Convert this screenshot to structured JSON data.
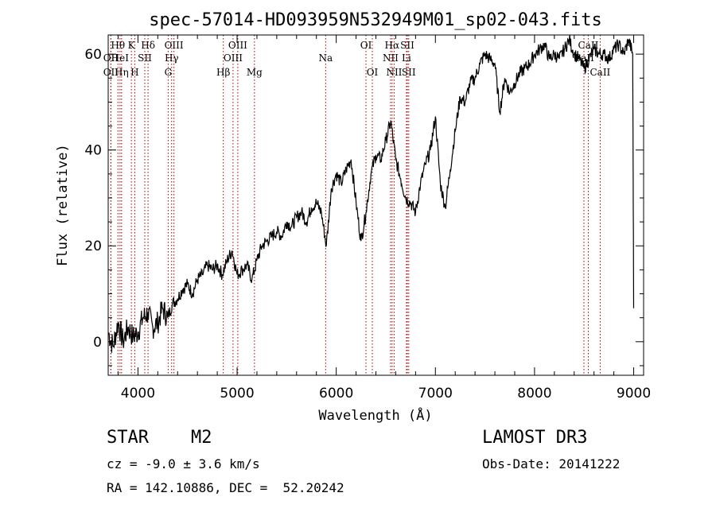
{
  "chart_data": {
    "type": "line",
    "title": "spec-57014-HD093959N532949M01_sp02-043.fits",
    "xlabel": "Wavelength (Å)",
    "ylabel": "Flux (relative)",
    "xlim": [
      3700,
      9100
    ],
    "ylim": [
      -7,
      64
    ],
    "xticks": [
      4000,
      5000,
      6000,
      7000,
      8000,
      9000
    ],
    "yticks": [
      0,
      20,
      40,
      60
    ],
    "series": [
      {
        "name": "flux",
        "x": [
          3700,
          3750,
          3800,
          3850,
          3900,
          3950,
          4000,
          4050,
          4100,
          4150,
          4200,
          4250,
          4300,
          4350,
          4400,
          4450,
          4500,
          4550,
          4600,
          4650,
          4700,
          4750,
          4800,
          4850,
          4900,
          4950,
          5000,
          5050,
          5100,
          5150,
          5200,
          5250,
          5300,
          5350,
          5400,
          5450,
          5500,
          5550,
          5600,
          5650,
          5700,
          5750,
          5800,
          5850,
          5900,
          5950,
          6000,
          6050,
          6100,
          6150,
          6200,
          6250,
          6300,
          6350,
          6400,
          6450,
          6500,
          6550,
          6600,
          6650,
          6700,
          6750,
          6800,
          6850,
          6900,
          6950,
          7000,
          7050,
          7100,
          7150,
          7200,
          7250,
          7300,
          7350,
          7400,
          7450,
          7500,
          7550,
          7600,
          7650,
          7700,
          7750,
          7800,
          7850,
          7900,
          7950,
          8000,
          8050,
          8100,
          8150,
          8200,
          8250,
          8300,
          8350,
          8400,
          8450,
          8500,
          8550,
          8600,
          8650,
          8700,
          8750,
          8800,
          8850,
          8900,
          8950,
          8990,
          9000
        ],
        "y": [
          2,
          -1,
          4,
          0,
          3,
          1,
          2,
          5,
          6,
          3,
          4,
          7,
          5,
          8,
          9,
          11,
          12,
          10,
          13,
          14,
          16,
          15,
          16,
          14,
          17,
          19,
          14,
          15,
          16,
          13,
          17,
          20,
          21,
          22,
          23,
          22,
          25,
          24,
          26,
          27,
          25,
          28,
          29,
          27,
          20,
          32,
          35,
          33,
          36,
          38,
          29,
          21,
          27,
          35,
          39,
          38,
          42,
          46,
          38,
          34,
          30,
          29,
          27,
          33,
          37,
          40,
          47,
          33,
          28,
          36,
          44,
          51,
          50,
          54,
          55,
          58,
          60,
          59,
          58,
          48,
          55,
          52,
          54,
          56,
          57,
          58,
          60,
          61,
          62,
          59,
          60,
          59,
          61,
          63,
          60,
          59,
          57,
          59,
          61,
          60,
          60,
          59,
          61,
          62,
          60,
          63,
          60,
          7
        ]
      }
    ],
    "lines": [
      {
        "label": "Hθ",
        "x": 3798,
        "row": 1
      },
      {
        "label": "OII",
        "x": 3727,
        "row": 2
      },
      {
        "label": "OII",
        "x": 3727,
        "row": 3
      },
      {
        "label": "HeI",
        "x": 3819,
        "row": 2
      },
      {
        "label": "Hη",
        "x": 3835,
        "row": 3
      },
      {
        "label": "K",
        "x": 3934,
        "row": 1
      },
      {
        "label": "SII",
        "x": 4069,
        "row": 2
      },
      {
        "label": "H",
        "x": 3968,
        "row": 3
      },
      {
        "label": "Hδ",
        "x": 4102,
        "row": 1
      },
      {
        "label": "OIII",
        "x": 4363,
        "row": 1
      },
      {
        "label": "Hγ",
        "x": 4340,
        "row": 2
      },
      {
        "label": "G",
        "x": 4305,
        "row": 3
      },
      {
        "label": "Hβ",
        "x": 4861,
        "row": 3
      },
      {
        "label": "OIII",
        "x": 5007,
        "row": 1
      },
      {
        "label": "OIII",
        "x": 4959,
        "row": 2
      },
      {
        "label": "Mg",
        "x": 5175,
        "row": 3
      },
      {
        "label": "Na",
        "x": 5893,
        "row": 2
      },
      {
        "label": "OI",
        "x": 6300,
        "row": 1
      },
      {
        "label": "OI",
        "x": 6364,
        "row": 3
      },
      {
        "label": "Hα",
        "x": 6563,
        "row": 1
      },
      {
        "label": "SII",
        "x": 6717,
        "row": 1
      },
      {
        "label": "NII",
        "x": 6548,
        "row": 2
      },
      {
        "label": "Li",
        "x": 6708,
        "row": 2
      },
      {
        "label": "NII",
        "x": 6584,
        "row": 3
      },
      {
        "label": "SII",
        "x": 6731,
        "row": 3
      },
      {
        "label": "CaII",
        "x": 8542,
        "row": 1
      },
      {
        "label": "CaII",
        "x": 8498,
        "row": 2
      },
      {
        "label": "CaII",
        "x": 8662,
        "row": 3
      }
    ],
    "line_color": "#a00000"
  },
  "info": {
    "object_type": "STAR",
    "subclass": "M2",
    "survey": "LAMOST DR3",
    "redshift": "cz = -9.0 ± 3.6 km/s",
    "obs_date": "Obs-Date: 20141222",
    "coords": "RA = 142.10886, DEC =  52.20242"
  }
}
